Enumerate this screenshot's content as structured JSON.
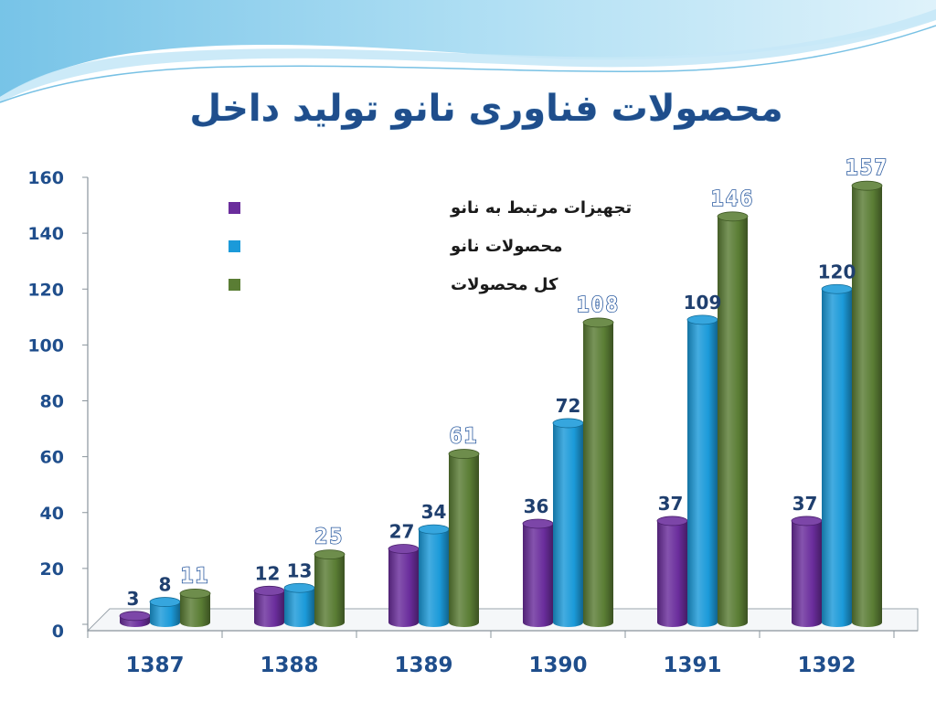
{
  "slide": {
    "title": "محصولات فناوری نانو تولید داخل"
  },
  "colors": {
    "title": "#1f4e8c",
    "axis_text": "#1f4e8c",
    "wave_top": "#7cc7ea",
    "wave_light": "#bfe4f5"
  },
  "chart_data": {
    "type": "bar",
    "categories": [
      "1387",
      "1388",
      "1389",
      "1390",
      "1391",
      "1392"
    ],
    "series": [
      {
        "name": "تجهیزات مرتبط به نانو",
        "values": [
          3,
          12,
          27,
          36,
          37,
          37
        ],
        "color": "#6a2d9c",
        "labels": [
          "3",
          "12",
          "27",
          "36",
          "37",
          "37"
        ]
      },
      {
        "name": "محصولات نانو",
        "values": [
          8,
          13,
          34,
          72,
          109,
          120
        ],
        "color": "#1b9ad9",
        "labels": [
          "8",
          "13",
          "34",
          "72",
          "109",
          "120"
        ]
      },
      {
        "name": "کل محصولات",
        "values": [
          11,
          25,
          61,
          108,
          146,
          157
        ],
        "color": "#5a7d34",
        "labels": [
          "11",
          "25",
          "61",
          "108",
          "146",
          "157"
        ]
      }
    ],
    "ylim": [
      0,
      160
    ],
    "yticks": [
      "0",
      "20",
      "40",
      "60",
      "80",
      "100",
      "120",
      "140",
      "160"
    ],
    "title": "محصولات فناوری نانو تولید داخل",
    "xlabel": "",
    "ylabel": "",
    "legend_position": "top-left",
    "style": "3d-cylinder",
    "grid": false
  }
}
